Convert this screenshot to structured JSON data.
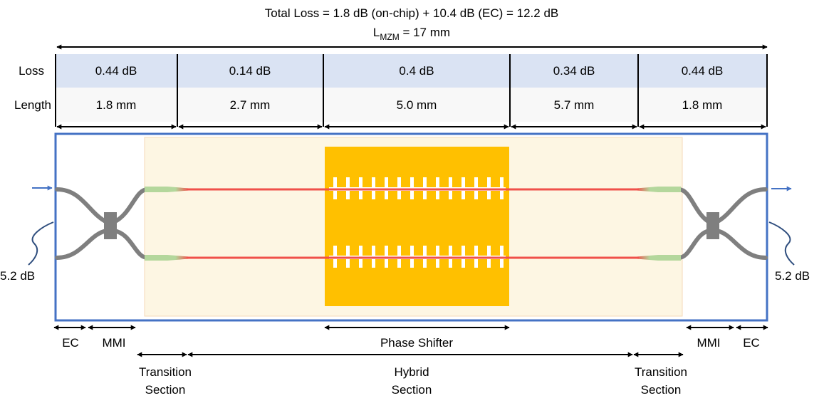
{
  "header": {
    "total_loss": "Total Loss = 1.8 dB (on-chip) + 10.4 dB (EC) = 12.2 dB",
    "length_prefix": "L",
    "length_subscript": "MZM",
    "length_value": " = 17 mm"
  },
  "table": {
    "loss_label": "Loss",
    "length_label": "Length",
    "losses": [
      "0.44 dB",
      "0.14 dB",
      "0.4 dB",
      "0.34 dB",
      "0.44 dB"
    ],
    "lengths": [
      "1.8 mm",
      "2.7 mm",
      "5.0 mm",
      "5.7 mm",
      "1.8 mm"
    ]
  },
  "coupling": {
    "left_loss": "5.2 dB",
    "right_loss": "5.2 dB"
  },
  "bottom_labels": {
    "ec_left": "EC",
    "mmi_left": "MMI",
    "phase_shifter": "Phase Shifter",
    "mmi_right": "MMI",
    "ec_right": "EC",
    "transition_left_line1": "Transition",
    "transition_left_line2": "Section",
    "hybrid_line1": "Hybrid",
    "hybrid_line2": "Section",
    "transition_right_line1": "Transition",
    "transition_right_line2": "Section"
  },
  "colors": {
    "chip_border": "#4472c4",
    "loss_row": "#dae3f3",
    "length_row": "#f8f8f8",
    "hybrid_region": "#fdf6e3",
    "electrode": "#ffc000",
    "waveguide": "#7f7f7f",
    "hybrid_waveguide": "#f0504a",
    "taper": "#b4d79c",
    "input_arrow": "#4472c4"
  }
}
